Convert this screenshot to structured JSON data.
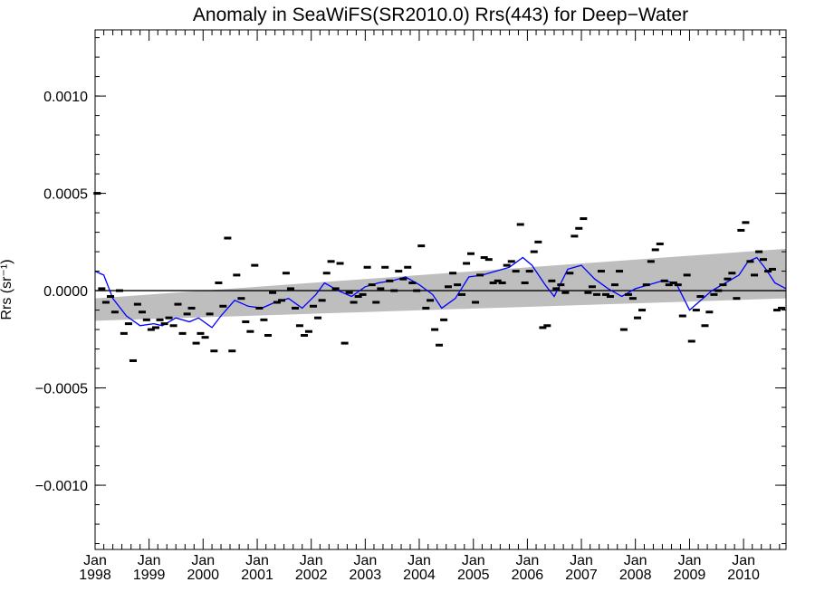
{
  "chart_data": {
    "type": "scatter",
    "title": "Anomaly in SeaWiFS(SR2010.0) Rrs(443) for Deep−Water",
    "ylabel": "Rrs (sr⁻¹)",
    "xlabel": "",
    "xlim": [
      "1998-01-01",
      "2010-10-15"
    ],
    "ylim": [
      -0.00133,
      0.00134
    ],
    "y_ticks": [
      {
        "value": -0.001,
        "label": "−0.0010"
      },
      {
        "value": -0.0005,
        "label": "−0.0005"
      },
      {
        "value": 0.0,
        "label": "0.0000"
      },
      {
        "value": 0.0005,
        "label": "0.0005"
      },
      {
        "value": 0.001,
        "label": "0.0010"
      }
    ],
    "x_ticks": [
      {
        "date": "1998-01-01",
        "month": "Jan",
        "year": "1998"
      },
      {
        "date": "1999-01-01",
        "month": "Jan",
        "year": "1999"
      },
      {
        "date": "2000-01-01",
        "month": "Jan",
        "year": "2000"
      },
      {
        "date": "2001-01-01",
        "month": "Jan",
        "year": "2001"
      },
      {
        "date": "2002-01-01",
        "month": "Jan",
        "year": "2002"
      },
      {
        "date": "2003-01-01",
        "month": "Jan",
        "year": "2003"
      },
      {
        "date": "2004-01-01",
        "month": "Jan",
        "year": "2004"
      },
      {
        "date": "2005-01-01",
        "month": "Jan",
        "year": "2005"
      },
      {
        "date": "2006-01-01",
        "month": "Jan",
        "year": "2006"
      },
      {
        "date": "2007-01-01",
        "month": "Jan",
        "year": "2007"
      },
      {
        "date": "2008-01-01",
        "month": "Jan",
        "year": "2008"
      },
      {
        "date": "2009-01-01",
        "month": "Jan",
        "year": "2009"
      },
      {
        "date": "2010-01-01",
        "month": "Jan",
        "year": "2010"
      }
    ],
    "grid": false,
    "colors": {
      "points": "#000000",
      "smooth_line": "#0000ff",
      "trend_band": "#bebebe",
      "zero_line": "#000000"
    },
    "zero_line": 0.0,
    "trend_band": {
      "x": [
        "1998-01-01",
        "2010-10-15"
      ],
      "lower": [
        -0.000155,
        -4e-05
      ],
      "upper": [
        -4e-05,
        0.000215
      ]
    },
    "points": [
      {
        "x": "1998-01-15",
        "y": 0.0005
      },
      {
        "x": "1998-02-15",
        "y": 1e-05
      },
      {
        "x": "1998-03-15",
        "y": -6e-05
      },
      {
        "x": "1998-04-15",
        "y": -3e-05
      },
      {
        "x": "1998-05-15",
        "y": -0.00011
      },
      {
        "x": "1998-06-15",
        "y": 0.0
      },
      {
        "x": "1998-07-15",
        "y": -0.00022
      },
      {
        "x": "1998-08-15",
        "y": -0.00017
      },
      {
        "x": "1998-09-15",
        "y": -0.00036
      },
      {
        "x": "1998-10-15",
        "y": -7e-05
      },
      {
        "x": "1998-11-15",
        "y": -0.00011
      },
      {
        "x": "1998-12-15",
        "y": -0.00015
      },
      {
        "x": "1999-01-15",
        "y": -0.0002
      },
      {
        "x": "1999-02-15",
        "y": -0.00019
      },
      {
        "x": "1999-03-15",
        "y": -0.00015
      },
      {
        "x": "1999-04-15",
        "y": -0.00017
      },
      {
        "x": "1999-05-15",
        "y": -0.00014
      },
      {
        "x": "1999-06-15",
        "y": -0.00018
      },
      {
        "x": "1999-07-15",
        "y": -7e-05
      },
      {
        "x": "1999-08-15",
        "y": -0.00022
      },
      {
        "x": "1999-09-15",
        "y": -0.00012
      },
      {
        "x": "1999-10-15",
        "y": -9e-05
      },
      {
        "x": "1999-11-15",
        "y": -0.00027
      },
      {
        "x": "1999-12-15",
        "y": -0.00022
      },
      {
        "x": "2000-01-15",
        "y": -0.00024
      },
      {
        "x": "2000-02-15",
        "y": -0.00012
      },
      {
        "x": "2000-03-15",
        "y": -0.00031
      },
      {
        "x": "2000-04-15",
        "y": 4e-05
      },
      {
        "x": "2000-05-15",
        "y": -8e-05
      },
      {
        "x": "2000-06-15",
        "y": 0.00027
      },
      {
        "x": "2000-07-15",
        "y": -0.00031
      },
      {
        "x": "2000-08-15",
        "y": 8e-05
      },
      {
        "x": "2000-09-15",
        "y": -4e-05
      },
      {
        "x": "2000-10-15",
        "y": -0.00016
      },
      {
        "x": "2000-11-15",
        "y": -0.00021
      },
      {
        "x": "2000-12-15",
        "y": 0.00013
      },
      {
        "x": "2001-01-15",
        "y": -9e-05
      },
      {
        "x": "2001-02-15",
        "y": -0.00015
      },
      {
        "x": "2001-03-15",
        "y": -0.00023
      },
      {
        "x": "2001-04-15",
        "y": -1e-05
      },
      {
        "x": "2001-05-15",
        "y": -6e-05
      },
      {
        "x": "2001-06-15",
        "y": -5e-05
      },
      {
        "x": "2001-07-15",
        "y": 9e-05
      },
      {
        "x": "2001-08-15",
        "y": 1e-05
      },
      {
        "x": "2001-09-15",
        "y": -9e-05
      },
      {
        "x": "2001-10-15",
        "y": -0.00018
      },
      {
        "x": "2001-11-15",
        "y": -0.00023
      },
      {
        "x": "2001-12-15",
        "y": -0.00021
      },
      {
        "x": "2002-01-15",
        "y": -8e-05
      },
      {
        "x": "2002-02-15",
        "y": -0.00014
      },
      {
        "x": "2002-03-15",
        "y": -5e-05
      },
      {
        "x": "2002-04-15",
        "y": 9e-05
      },
      {
        "x": "2002-05-15",
        "y": 0.00015
      },
      {
        "x": "2002-06-15",
        "y": 1e-05
      },
      {
        "x": "2002-07-15",
        "y": 0.00014
      },
      {
        "x": "2002-08-15",
        "y": -0.00027
      },
      {
        "x": "2002-09-15",
        "y": -1e-05
      },
      {
        "x": "2002-10-15",
        "y": -6e-05
      },
      {
        "x": "2002-11-15",
        "y": -3e-05
      },
      {
        "x": "2002-12-15",
        "y": -2e-05
      },
      {
        "x": "2003-01-15",
        "y": 0.00012
      },
      {
        "x": "2003-02-15",
        "y": 3e-05
      },
      {
        "x": "2003-03-15",
        "y": -6e-05
      },
      {
        "x": "2003-04-15",
        "y": 1e-05
      },
      {
        "x": "2003-05-15",
        "y": 0.00012
      },
      {
        "x": "2003-06-15",
        "y": 5e-05
      },
      {
        "x": "2003-07-15",
        "y": 0.0
      },
      {
        "x": "2003-08-15",
        "y": 0.0001
      },
      {
        "x": "2003-09-15",
        "y": 6e-05
      },
      {
        "x": "2003-10-15",
        "y": 0.00012
      },
      {
        "x": "2003-11-15",
        "y": 4e-05
      },
      {
        "x": "2003-12-15",
        "y": 0.0
      },
      {
        "x": "2004-01-15",
        "y": 0.00023
      },
      {
        "x": "2004-02-15",
        "y": -9e-05
      },
      {
        "x": "2004-03-15",
        "y": -5e-05
      },
      {
        "x": "2004-04-15",
        "y": -0.0002
      },
      {
        "x": "2004-05-15",
        "y": -0.00028
      },
      {
        "x": "2004-06-15",
        "y": -0.00015
      },
      {
        "x": "2004-07-15",
        "y": 2e-05
      },
      {
        "x": "2004-08-15",
        "y": 9e-05
      },
      {
        "x": "2004-09-15",
        "y": 3e-05
      },
      {
        "x": "2004-10-15",
        "y": -2e-05
      },
      {
        "x": "2004-11-15",
        "y": 0.00014
      },
      {
        "x": "2004-12-15",
        "y": 0.00019
      },
      {
        "x": "2005-01-15",
        "y": -6e-05
      },
      {
        "x": "2005-02-15",
        "y": 8e-05
      },
      {
        "x": "2005-03-15",
        "y": 0.00017
      },
      {
        "x": "2005-04-15",
        "y": 0.00016
      },
      {
        "x": "2005-05-15",
        "y": 4e-05
      },
      {
        "x": "2005-06-15",
        "y": 5e-05
      },
      {
        "x": "2005-07-15",
        "y": 4e-05
      },
      {
        "x": "2005-08-15",
        "y": 0.00013
      },
      {
        "x": "2005-09-15",
        "y": 0.00015
      },
      {
        "x": "2005-10-15",
        "y": 0.0001
      },
      {
        "x": "2005-11-15",
        "y": 0.00034
      },
      {
        "x": "2005-12-15",
        "y": 4e-05
      },
      {
        "x": "2006-01-15",
        "y": 0.0001
      },
      {
        "x": "2006-02-15",
        "y": 0.0002
      },
      {
        "x": "2006-03-15",
        "y": 0.00025
      },
      {
        "x": "2006-04-15",
        "y": -0.00019
      },
      {
        "x": "2006-05-15",
        "y": -0.00018
      },
      {
        "x": "2006-06-15",
        "y": 5e-05
      },
      {
        "x": "2006-07-15",
        "y": 1e-05
      },
      {
        "x": "2006-08-15",
        "y": 3e-05
      },
      {
        "x": "2006-09-15",
        "y": -1e-05
      },
      {
        "x": "2006-10-15",
        "y": 9e-05
      },
      {
        "x": "2006-11-15",
        "y": 0.00028
      },
      {
        "x": "2006-12-15",
        "y": 0.00032
      },
      {
        "x": "2007-01-15",
        "y": 0.00037
      },
      {
        "x": "2007-02-15",
        "y": -1e-05
      },
      {
        "x": "2007-03-15",
        "y": 2e-05
      },
      {
        "x": "2007-04-15",
        "y": -2e-05
      },
      {
        "x": "2007-05-15",
        "y": 0.0001
      },
      {
        "x": "2007-06-15",
        "y": -2e-05
      },
      {
        "x": "2007-07-15",
        "y": -3e-05
      },
      {
        "x": "2007-08-15",
        "y": 3e-05
      },
      {
        "x": "2007-09-15",
        "y": 0.0001
      },
      {
        "x": "2007-10-15",
        "y": -0.0002
      },
      {
        "x": "2007-11-15",
        "y": -2e-05
      },
      {
        "x": "2007-12-15",
        "y": -4e-05
      },
      {
        "x": "2008-01-15",
        "y": -0.00014
      },
      {
        "x": "2008-02-15",
        "y": -0.0001
      },
      {
        "x": "2008-03-15",
        "y": 3e-05
      },
      {
        "x": "2008-04-15",
        "y": 0.00015
      },
      {
        "x": "2008-05-15",
        "y": 0.00021
      },
      {
        "x": "2008-06-15",
        "y": 0.00024
      },
      {
        "x": "2008-07-15",
        "y": 5e-05
      },
      {
        "x": "2008-08-15",
        "y": 3e-05
      },
      {
        "x": "2008-09-15",
        "y": 4e-05
      },
      {
        "x": "2008-10-15",
        "y": 3e-05
      },
      {
        "x": "2008-11-15",
        "y": -0.00013
      },
      {
        "x": "2008-12-15",
        "y": 8e-05
      },
      {
        "x": "2009-01-15",
        "y": -0.00026
      },
      {
        "x": "2009-02-15",
        "y": -0.0001
      },
      {
        "x": "2009-03-15",
        "y": -3e-05
      },
      {
        "x": "2009-04-15",
        "y": -0.00018
      },
      {
        "x": "2009-05-15",
        "y": -0.00011
      },
      {
        "x": "2009-06-15",
        "y": -2e-05
      },
      {
        "x": "2009-07-15",
        "y": 0.0
      },
      {
        "x": "2009-08-15",
        "y": 3e-05
      },
      {
        "x": "2009-09-15",
        "y": 6e-05
      },
      {
        "x": "2009-10-15",
        "y": 9e-05
      },
      {
        "x": "2009-11-15",
        "y": -4e-05
      },
      {
        "x": "2009-12-15",
        "y": 0.00031
      },
      {
        "x": "2010-01-15",
        "y": 0.00035
      },
      {
        "x": "2010-02-15",
        "y": 0.00015
      },
      {
        "x": "2010-03-15",
        "y": 8e-05
      },
      {
        "x": "2010-04-15",
        "y": 0.0002
      },
      {
        "x": "2010-05-15",
        "y": 0.00016
      },
      {
        "x": "2010-06-15",
        "y": 0.0001
      },
      {
        "x": "2010-07-15",
        "y": 0.00011
      },
      {
        "x": "2010-08-15",
        "y": -0.0001
      },
      {
        "x": "2010-09-15",
        "y": -9e-05
      }
    ],
    "smooth_line": [
      {
        "x": "1998-01-01",
        "y": 0.0001
      },
      {
        "x": "1998-03-01",
        "y": 8e-05
      },
      {
        "x": "1998-05-01",
        "y": -4e-05
      },
      {
        "x": "1998-08-01",
        "y": -0.00013
      },
      {
        "x": "1998-11-01",
        "y": -0.00018
      },
      {
        "x": "1999-02-01",
        "y": -0.00017
      },
      {
        "x": "1999-04-01",
        "y": -0.00018
      },
      {
        "x": "1999-07-01",
        "y": -0.00014
      },
      {
        "x": "1999-10-01",
        "y": -0.00016
      },
      {
        "x": "1999-12-01",
        "y": -0.00014
      },
      {
        "x": "2000-03-01",
        "y": -0.00019
      },
      {
        "x": "2000-05-01",
        "y": -0.00013
      },
      {
        "x": "2000-08-01",
        "y": -5e-05
      },
      {
        "x": "2000-11-01",
        "y": -8e-05
      },
      {
        "x": "2001-02-01",
        "y": -9e-05
      },
      {
        "x": "2001-05-01",
        "y": -6e-05
      },
      {
        "x": "2001-08-01",
        "y": -4e-05
      },
      {
        "x": "2001-11-01",
        "y": -9e-05
      },
      {
        "x": "2002-02-01",
        "y": -2e-05
      },
      {
        "x": "2002-04-01",
        "y": 4e-05
      },
      {
        "x": "2002-07-01",
        "y": 0.0
      },
      {
        "x": "2002-10-01",
        "y": -3e-05
      },
      {
        "x": "2003-01-01",
        "y": 2e-05
      },
      {
        "x": "2003-04-01",
        "y": 4e-05
      },
      {
        "x": "2003-07-01",
        "y": 5e-05
      },
      {
        "x": "2003-10-01",
        "y": 7e-05
      },
      {
        "x": "2004-01-01",
        "y": 3e-05
      },
      {
        "x": "2004-04-01",
        "y": -2e-05
      },
      {
        "x": "2004-06-01",
        "y": -9e-05
      },
      {
        "x": "2004-09-01",
        "y": -4e-05
      },
      {
        "x": "2004-12-01",
        "y": 7e-05
      },
      {
        "x": "2005-03-01",
        "y": 8e-05
      },
      {
        "x": "2005-06-01",
        "y": 0.0001
      },
      {
        "x": "2005-09-01",
        "y": 0.00012
      },
      {
        "x": "2005-12-01",
        "y": 0.00017
      },
      {
        "x": "2006-02-01",
        "y": 0.00013
      },
      {
        "x": "2006-05-01",
        "y": 3e-05
      },
      {
        "x": "2006-07-01",
        "y": -3e-05
      },
      {
        "x": "2006-10-01",
        "y": 0.00011
      },
      {
        "x": "2007-01-01",
        "y": 0.00013
      },
      {
        "x": "2007-04-01",
        "y": 6e-05
      },
      {
        "x": "2007-07-01",
        "y": 1e-05
      },
      {
        "x": "2007-10-01",
        "y": -3e-05
      },
      {
        "x": "2008-01-01",
        "y": 1e-05
      },
      {
        "x": "2008-04-01",
        "y": 3e-05
      },
      {
        "x": "2008-07-01",
        "y": 5e-05
      },
      {
        "x": "2008-10-01",
        "y": 4e-05
      },
      {
        "x": "2009-01-01",
        "y": -0.0001
      },
      {
        "x": "2009-04-01",
        "y": -4e-05
      },
      {
        "x": "2009-06-01",
        "y": 0.0
      },
      {
        "x": "2009-09-01",
        "y": 4e-05
      },
      {
        "x": "2009-12-01",
        "y": 8e-05
      },
      {
        "x": "2010-02-01",
        "y": 0.00015
      },
      {
        "x": "2010-04-01",
        "y": 0.00017
      },
      {
        "x": "2010-06-01",
        "y": 0.00011
      },
      {
        "x": "2010-08-01",
        "y": 4e-05
      },
      {
        "x": "2010-10-15",
        "y": 1e-05
      }
    ]
  }
}
